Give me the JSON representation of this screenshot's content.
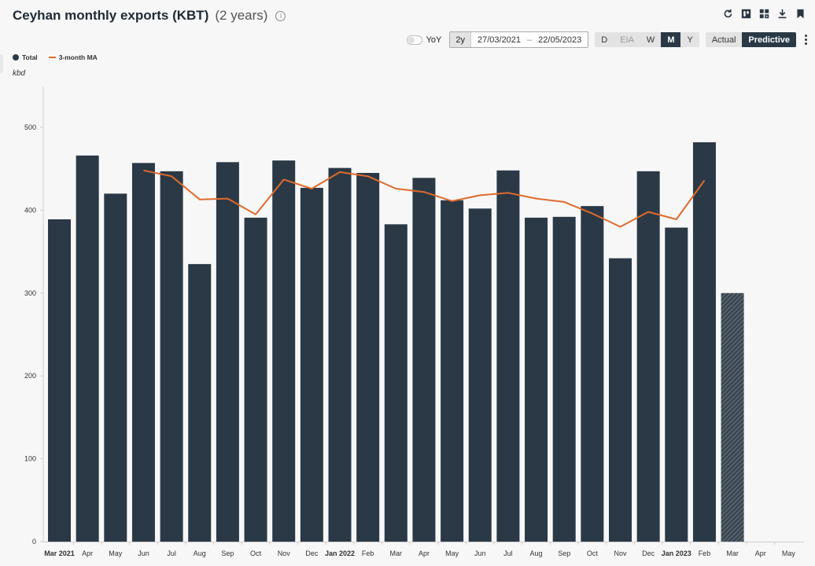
{
  "header": {
    "title": "Ceyhan monthly exports (KBT)",
    "subtitle": "(2 years)",
    "info_glyph": "i"
  },
  "toolbar_icons": [
    "refresh-icon",
    "export-chart-icon",
    "dashboard-icon",
    "download-icon",
    "bookmark-icon"
  ],
  "controls": {
    "yoy_label": "YoY",
    "range_label": "2y",
    "date_start": "27/03/2021",
    "date_sep": "–",
    "date_end": "22/05/2023",
    "frequency": [
      "D",
      "EIA",
      "W",
      "M",
      "Y"
    ],
    "frequency_selected": "M",
    "mode": [
      "Actual",
      "Predictive"
    ],
    "mode_selected": "Predictive"
  },
  "colors": {
    "bar": "#2b3946",
    "line": "#e06a2c",
    "predicted_hatch": "#5b6670"
  },
  "chart_data": {
    "type": "bar",
    "unit": "kbd",
    "ylim": [
      0,
      550
    ],
    "y_ticks": [
      0,
      100,
      200,
      300,
      400,
      500
    ],
    "grid": false,
    "legend_position": "top-left",
    "categories": [
      "Mar 2021",
      "Apr",
      "May",
      "Jun",
      "Jul",
      "Aug",
      "Sep",
      "Oct",
      "Nov",
      "Dec",
      "Jan 2022",
      "Feb",
      "Mar",
      "Apr",
      "May",
      "Jun",
      "Jul",
      "Aug",
      "Sep",
      "Oct",
      "Nov",
      "Dec",
      "Jan 2023",
      "Feb",
      "Mar",
      "Apr",
      "May"
    ],
    "bold_categories": [
      "Mar 2021",
      "Jan 2022",
      "Jan 2023"
    ],
    "series": [
      {
        "name": "Total",
        "type": "bar",
        "values": [
          389,
          466,
          420,
          457,
          447,
          335,
          458,
          391,
          460,
          427,
          451,
          445,
          383,
          439,
          412,
          402,
          448,
          391,
          392,
          405,
          342,
          447,
          379,
          482,
          300,
          null,
          null
        ],
        "predicted_index": [
          24
        ]
      },
      {
        "name": "3-month MA",
        "type": "line",
        "values": [
          null,
          null,
          null,
          448,
          441,
          413,
          414,
          395,
          437,
          426,
          446,
          441,
          426,
          422,
          411,
          418,
          421,
          414,
          410,
          396,
          380,
          398,
          389,
          436,
          null,
          null,
          null
        ]
      }
    ]
  }
}
